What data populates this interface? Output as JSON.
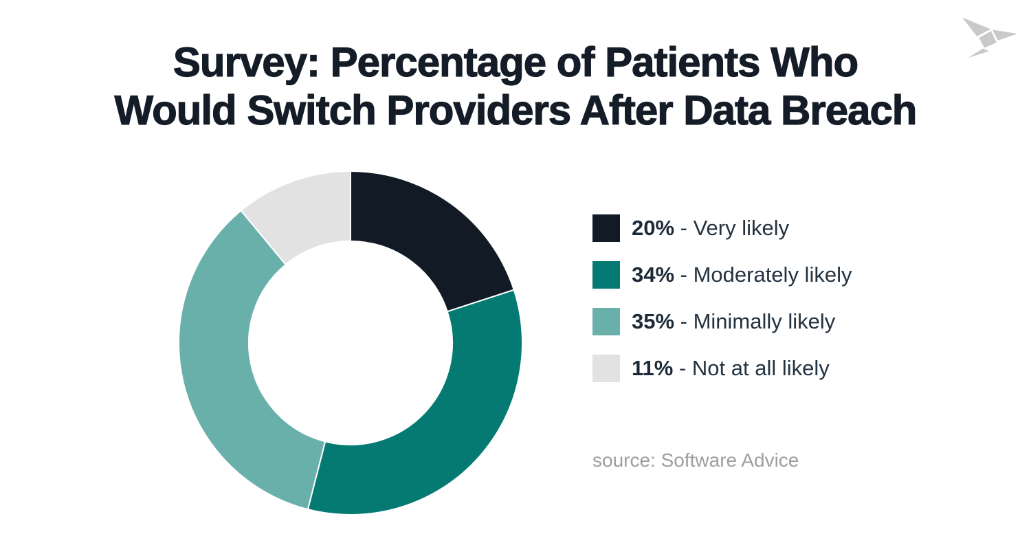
{
  "title": {
    "line1": "Survey: Percentage of Patients Who",
    "line2": "Would Switch Providers After Data Breach"
  },
  "source": {
    "text": "source: Software Advice"
  },
  "logo": {
    "icon": "origami-bird",
    "color": "#c7c9cb"
  },
  "colors": {
    "title_text": "#141d27",
    "legend_text": "#233240",
    "source_text": "#9e9e9e",
    "background": "#ffffff",
    "slice_border": "#ffffff"
  },
  "chart_data": {
    "type": "pie",
    "variant": "donut",
    "title": "Survey: Percentage of Patients Who Would Switch Providers After Data Breach",
    "slices": [
      {
        "label": "Very likely",
        "value": 20,
        "pct_label": "20%",
        "color": "#121b25"
      },
      {
        "label": "Moderately likely",
        "value": 34,
        "pct_label": "34%",
        "color": "#047a73"
      },
      {
        "label": "Minimally likely",
        "value": 35,
        "pct_label": "35%",
        "color": "#69b0ab"
      },
      {
        "label": "Not at all likely",
        "value": 11,
        "pct_label": "11%",
        "color": "#e1e2e1"
      }
    ],
    "start_angle_deg": 0,
    "direction": "clockwise",
    "inner_radius_ratio": 0.59,
    "legend_position": "right",
    "legend_separator": " - ",
    "source": "source: Software Advice"
  }
}
